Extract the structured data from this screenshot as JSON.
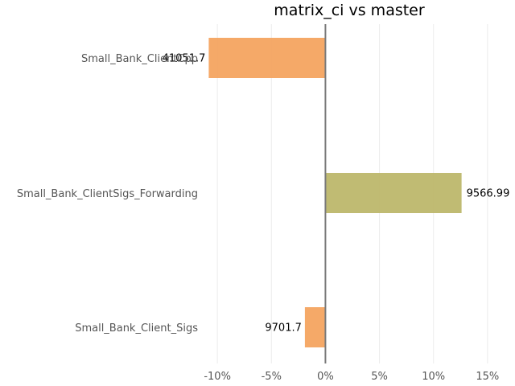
{
  "chart_data": {
    "type": "bar",
    "orientation": "horizontal",
    "title": "matrix_ci vs master",
    "xlabel": "",
    "ylabel": "",
    "categories": [
      "Small_Bank_ClientCpp",
      "Small_Bank_ClientSigs_Forwarding",
      "Small_Bank_Client_Sigs"
    ],
    "values": [
      -10.8,
      12.6,
      -1.9
    ],
    "data_labels": [
      "41051.7",
      "9566.99",
      "9701.7"
    ],
    "colors": [
      "#f4a460",
      "#bdb76b",
      "#f4a460"
    ],
    "xlim": [
      -11.5,
      16.8
    ],
    "x_ticks": [
      -10,
      -5,
      0,
      5,
      10,
      15
    ],
    "x_tick_labels": [
      "-10%",
      "-5%",
      "0%",
      "5%",
      "10%",
      "15%"
    ],
    "grid": true
  }
}
